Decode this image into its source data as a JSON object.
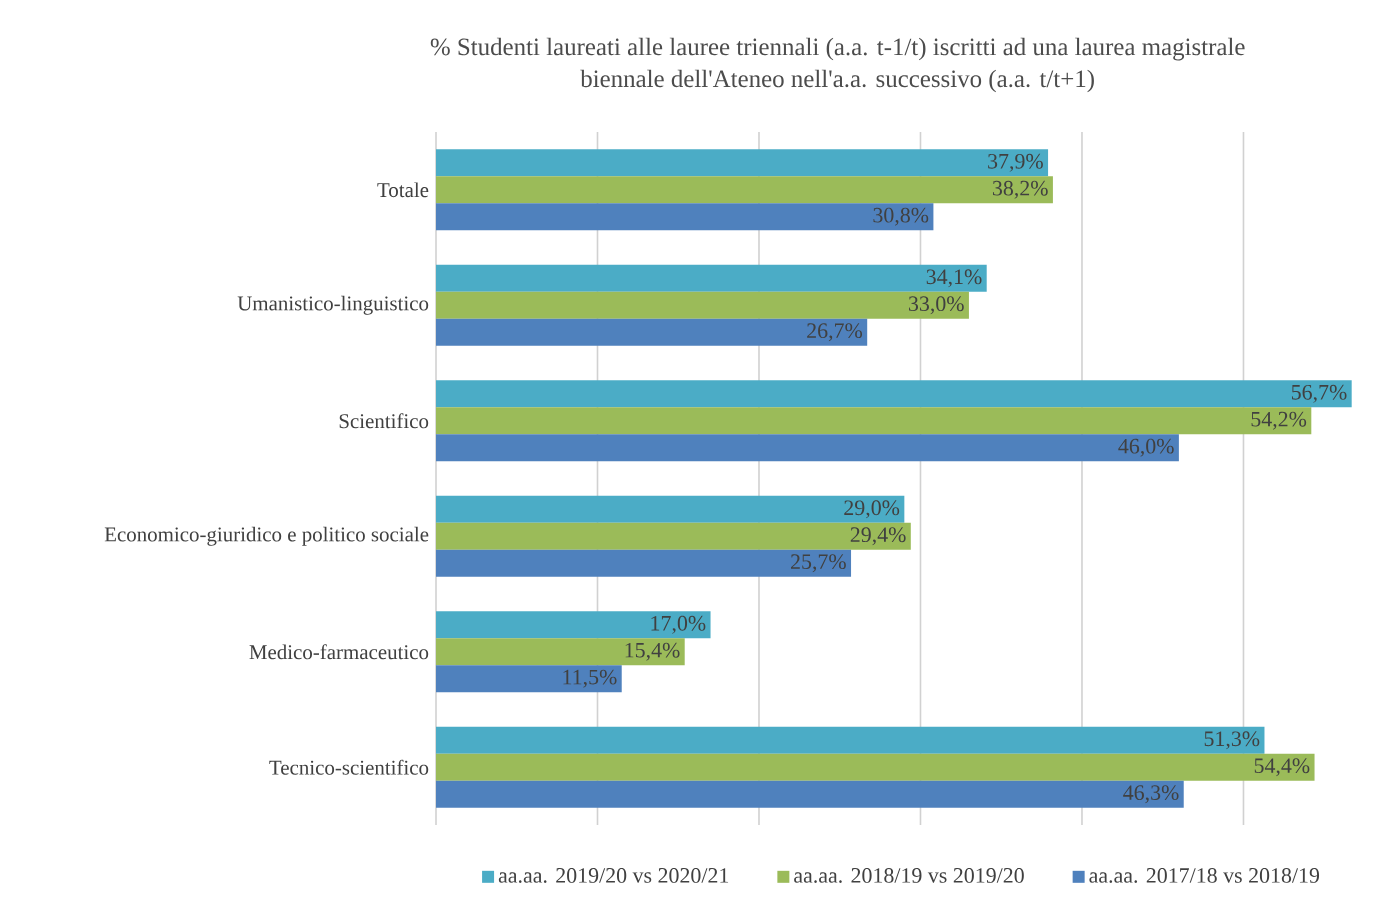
{
  "chart_data": {
    "type": "bar",
    "orientation": "horizontal",
    "title": "% Studenti laureati alle lauree triennali (a.a. t-1/t) iscritti ad una laurea magistrale biennale dell'Ateneo nell'a.a. successivo (a.a. t/t+1)",
    "categories": [
      "Totale",
      "Umanistico-linguistico",
      "Scientifico",
      "Economico-giuridico e politico sociale",
      "Medico-farmaceutico",
      "Tecnico-scientifico"
    ],
    "series": [
      {
        "name": "aa.aa. 2019/20 vs 2020/21",
        "color": "#4bacc6",
        "values": [
          37.9,
          34.1,
          56.7,
          29.0,
          17.0,
          51.3
        ],
        "value_labels": [
          "37,9%",
          "34,1%",
          "56,7%",
          "29,0%",
          "17,0%",
          "51,3%"
        ]
      },
      {
        "name": "aa.aa. 2018/19 vs 2019/20",
        "color": "#9bbb59",
        "values": [
          38.2,
          33.0,
          54.2,
          29.4,
          15.4,
          54.4
        ],
        "value_labels": [
          "38,2%",
          "33,0%",
          "54,2%",
          "29,4%",
          "15,4%",
          "54,4%"
        ]
      },
      {
        "name": "aa.aa. 2017/18 vs 2018/19",
        "color": "#4f81bd",
        "values": [
          30.8,
          26.7,
          46.0,
          25.7,
          11.5,
          46.3
        ],
        "value_labels": [
          "30,8%",
          "26,7%",
          "46,0%",
          "25,7%",
          "11,5%",
          "46,3%"
        ]
      }
    ],
    "xticks": [
      {
        "value": 0,
        "label": null
      },
      {
        "value": 10,
        "label": null
      },
      {
        "value": 20,
        "label": null
      },
      {
        "value": 30,
        "label": null
      },
      {
        "value": 40,
        "label": null
      },
      {
        "value": 50,
        "label": null
      }
    ],
    "tick_labels": "y",
    "grid": "x",
    "legend": "bottom"
  }
}
